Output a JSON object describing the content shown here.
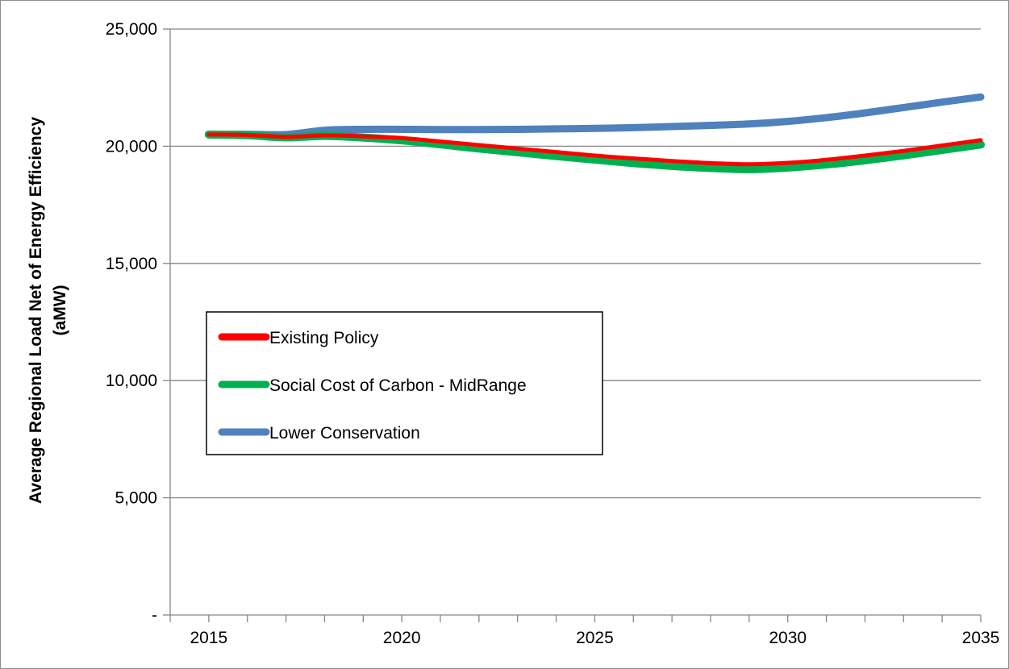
{
  "chart_data": {
    "type": "line",
    "title": "",
    "xlabel": "",
    "ylabel": "Average Regional Load Net of Energy Efficiency",
    "ylabel_unit": "(aMW)",
    "x": [
      2015,
      2016,
      2017,
      2018,
      2019,
      2020,
      2021,
      2022,
      2023,
      2024,
      2025,
      2026,
      2027,
      2028,
      2029,
      2030,
      2031,
      2032,
      2033,
      2034,
      2035
    ],
    "xlim": [
      2014,
      2035
    ],
    "x_ticks": [
      2015,
      2020,
      2025,
      2030,
      2035
    ],
    "x_tick_labels": [
      "2015",
      "2020",
      "2025",
      "2030",
      "2035"
    ],
    "ylim": [
      0,
      25000
    ],
    "y_ticks": [
      0,
      5000,
      10000,
      15000,
      20000,
      25000
    ],
    "y_tick_labels": [
      "-",
      "5,000",
      "10,000",
      "15,000",
      "20,000",
      "25,000"
    ],
    "grid": "horizontal",
    "legend_position": "left-middle",
    "series": [
      {
        "name": "Existing Policy",
        "color": "#ff0000",
        "values": [
          20500,
          20480,
          20400,
          20460,
          20420,
          20350,
          20200,
          20050,
          19900,
          19750,
          19600,
          19480,
          19370,
          19280,
          19230,
          19290,
          19420,
          19600,
          19800,
          20030,
          20260
        ]
      },
      {
        "name": "Social Cost of Carbon - MidRange",
        "color": "#00b050",
        "values": [
          20500,
          20470,
          20380,
          20440,
          20370,
          20250,
          20080,
          19900,
          19740,
          19580,
          19430,
          19280,
          19160,
          19070,
          19020,
          19090,
          19220,
          19400,
          19610,
          19840,
          20070
        ]
      },
      {
        "name": "Lower Conservation",
        "color": "#4f81bd",
        "values": [
          20500,
          20510,
          20500,
          20680,
          20720,
          20720,
          20710,
          20710,
          20720,
          20740,
          20760,
          20790,
          20840,
          20890,
          20950,
          21060,
          21220,
          21420,
          21650,
          21880,
          22100
        ]
      }
    ]
  }
}
